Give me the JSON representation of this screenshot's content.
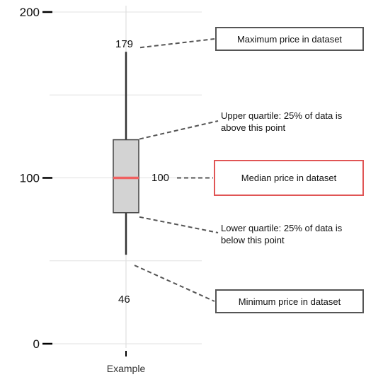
{
  "chart_data": {
    "type": "box",
    "categories": [
      "Example"
    ],
    "ylim": [
      0,
      200
    ],
    "yticks": [
      0,
      100,
      200
    ],
    "grid": true,
    "box": {
      "min": 46,
      "q1": 79,
      "median": 100,
      "q3": 123,
      "max": 179
    },
    "value_labels": {
      "max": "179",
      "median": "100",
      "min": "46"
    },
    "annotations": {
      "max": "Maximum price in dataset",
      "q3": "Upper quartile: 25% of data is above this point",
      "median": "Median price in dataset",
      "q1": "Lower quartile: 25% of data is below this point",
      "min": "Minimum price in dataset"
    },
    "colors": {
      "box_fill": "#d3d3d3",
      "box_stroke": "#444444",
      "median": "#f06060",
      "whisker": "#333333",
      "grid": "#e0e0e0",
      "leader": "#555555",
      "median_callout_border": "#e05555"
    }
  }
}
